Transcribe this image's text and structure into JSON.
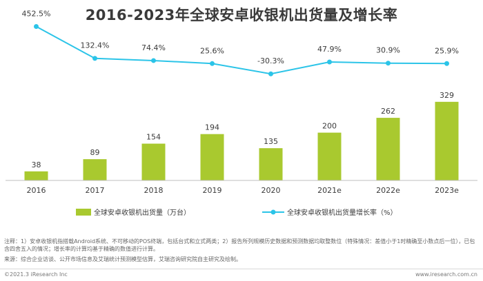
{
  "header": {
    "title": "2016-2023年全球安卓收银机出货量及增长率"
  },
  "colors": {
    "bar": "#a9c92f",
    "line": "#2bc4e8",
    "text": "#3a3a3a",
    "axis": "#bfbfbf"
  },
  "chart_data": {
    "type": "bar",
    "categories": [
      "2016",
      "2017",
      "2018",
      "2019",
      "2020",
      "2021e",
      "2022e",
      "2023e"
    ],
    "series": [
      {
        "name": "全球安卓收银机出货量（万台）",
        "type": "bar",
        "values": [
          38,
          89,
          154,
          194,
          135,
          200,
          262,
          329
        ],
        "labels": [
          "38",
          "89",
          "154",
          "194",
          "135",
          "200",
          "262",
          "329"
        ]
      },
      {
        "name": "全球安卓收银机出货量增长率（%）",
        "type": "line",
        "values": [
          452.5,
          132.4,
          74.4,
          25.6,
          -30.3,
          47.9,
          30.9,
          25.9
        ],
        "labels": [
          "452.5%",
          "132.4%",
          "74.4%",
          "25.6%",
          "-30.3%",
          "47.9%",
          "30.9%",
          "25.9%"
        ]
      }
    ],
    "legend": "bottom",
    "grid": false
  },
  "notes": {
    "note1": "注释：1）安卓收银机指搭载Android系统、不可移动的POS终端，包括台式和立式两类；2）报告所列规模历史数据和预测数据均取整数位（特殊情况：差值小于1时精确至小数点后一位），已包含四舍五入的情况；增长率的计算均基于精确的数值进行计算。",
    "source": "来源：综合企业访谈、公开市场信息及艾瑞统计预测模型估算，艾瑞咨询研究院自主研究及绘制。"
  },
  "footer": {
    "left": "©2021.3 iResearch Inc",
    "right": "www.iresearch.com.cn"
  }
}
